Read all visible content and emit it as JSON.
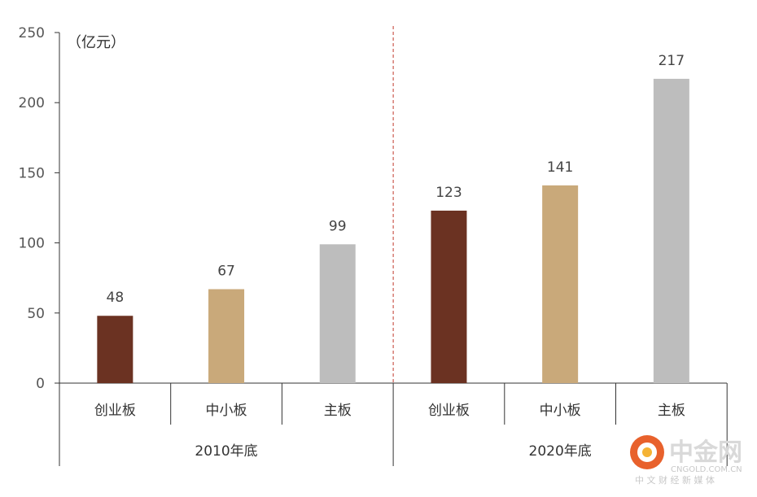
{
  "chart_data": {
    "type": "bar",
    "unit_label": "（亿元）",
    "ylim": [
      0,
      250
    ],
    "yticks": [
      0,
      50,
      100,
      150,
      200,
      250
    ],
    "grid": false,
    "groups": [
      {
        "label": "2010年底",
        "categories": [
          "创业板",
          "中小板",
          "主板"
        ],
        "values": [
          48,
          67,
          99
        ]
      },
      {
        "label": "2020年底",
        "categories": [
          "创业板",
          "中小板",
          "主板"
        ],
        "values": [
          123,
          141,
          217
        ]
      }
    ],
    "category_colors": [
      "#6b3222",
      "#c9a97a",
      "#bdbdbd"
    ],
    "separator_color": "#c0392b"
  },
  "watermark": {
    "brand": "中金网",
    "domain": "CNGOLD.COM.CN",
    "tagline": "中 文 财 经 新 媒 体"
  }
}
